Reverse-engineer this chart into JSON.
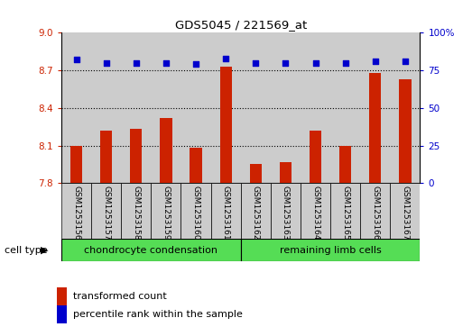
{
  "title": "GDS5045 / 221569_at",
  "samples": [
    "GSM1253156",
    "GSM1253157",
    "GSM1253158",
    "GSM1253159",
    "GSM1253160",
    "GSM1253161",
    "GSM1253162",
    "GSM1253163",
    "GSM1253164",
    "GSM1253165",
    "GSM1253166",
    "GSM1253167"
  ],
  "transformed_count": [
    8.1,
    8.22,
    8.23,
    8.32,
    8.08,
    8.73,
    7.95,
    7.97,
    8.22,
    8.1,
    8.68,
    8.63
  ],
  "percentile_rank": [
    82,
    80,
    80,
    80,
    79,
    83,
    80,
    80,
    80,
    80,
    81,
    81
  ],
  "ylim_left": [
    7.8,
    9.0
  ],
  "ylim_right": [
    0,
    100
  ],
  "yticks_left": [
    7.8,
    8.1,
    8.4,
    8.7,
    9.0
  ],
  "yticks_right": [
    0,
    25,
    50,
    75,
    100
  ],
  "bar_color": "#cc2200",
  "dot_color": "#0000cc",
  "group1_label": "chondrocyte condensation",
  "group2_label": "remaining limb cells",
  "group1_count": 6,
  "group2_count": 6,
  "cell_type_label": "cell type",
  "legend_bar_label": "transformed count",
  "legend_dot_label": "percentile rank within the sample",
  "group_bg_color": "#55dd55",
  "sample_bg_color": "#cccccc",
  "plot_bg_color": "#ffffff"
}
